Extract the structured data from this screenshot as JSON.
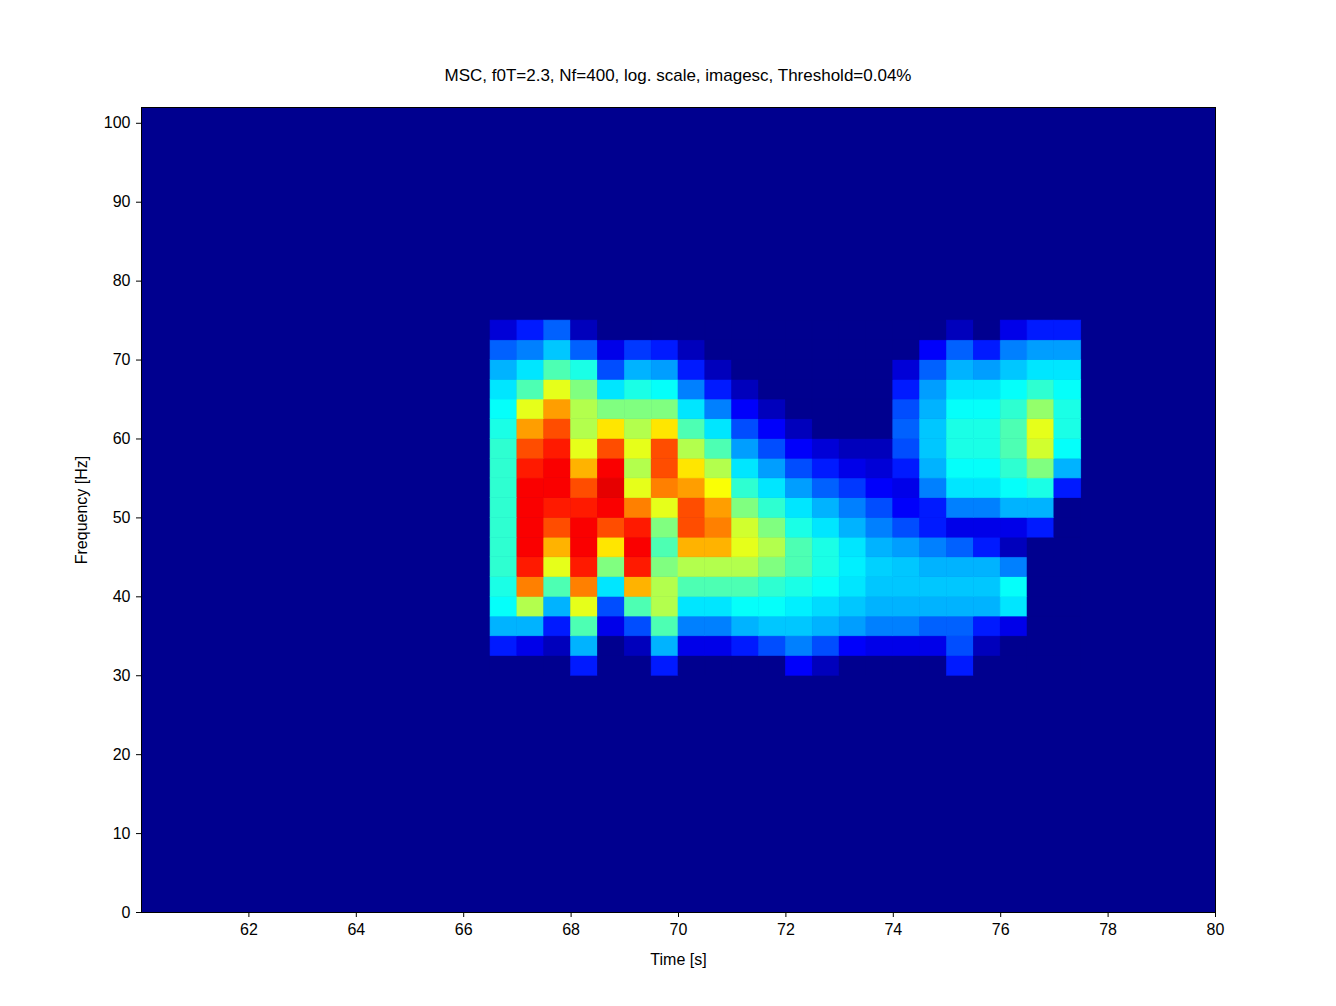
{
  "chart_data": {
    "type": "heatmap",
    "title": "MSC, f0T=2.3, Nf=400, log. scale, imagesc, Threshold=0.04%",
    "xlabel": "Time [s]",
    "ylabel": "Frequency [Hz]",
    "xlim": [
      60,
      80
    ],
    "ylim": [
      0,
      102
    ],
    "xticks": [
      62,
      64,
      66,
      68,
      70,
      72,
      74,
      76,
      78,
      80
    ],
    "yticks": [
      0,
      10,
      20,
      30,
      40,
      50,
      60,
      70,
      80,
      90,
      100
    ],
    "color": "jet",
    "zlim": [
      0,
      100
    ],
    "xbins": [
      66.5,
      67,
      67.5,
      68,
      68.5,
      69,
      69.5,
      70,
      70.5,
      71,
      71.5,
      72,
      72.5,
      73,
      73.5,
      74,
      74.5,
      75,
      75.5,
      76,
      76.5,
      77,
      77.5
    ],
    "ybins": [
      30,
      32.5,
      35,
      37.5,
      40,
      42.5,
      45,
      47.5,
      50,
      52.5,
      55,
      57.5,
      60,
      62.5,
      65,
      67.5,
      70,
      72.5,
      75
    ],
    "values": [
      [
        0,
        0,
        0,
        15,
        0,
        0,
        15,
        0,
        0,
        0,
        0,
        12,
        5,
        0,
        0,
        0,
        0,
        15,
        0,
        0,
        0,
        0
      ],
      [
        15,
        10,
        5,
        30,
        0,
        5,
        30,
        10,
        10,
        15,
        20,
        25,
        20,
        12,
        10,
        10,
        10,
        20,
        5,
        0,
        0,
        0
      ],
      [
        30,
        30,
        15,
        45,
        10,
        20,
        45,
        25,
        25,
        30,
        32,
        32,
        30,
        28,
        25,
        25,
        22,
        22,
        15,
        10,
        0,
        0
      ],
      [
        38,
        55,
        30,
        60,
        20,
        45,
        55,
        35,
        35,
        38,
        38,
        36,
        34,
        32,
        30,
        30,
        30,
        30,
        30,
        35,
        0,
        0
      ],
      [
        40,
        75,
        45,
        75,
        35,
        70,
        55,
        45,
        45,
        45,
        42,
        40,
        38,
        35,
        32,
        32,
        32,
        32,
        32,
        38,
        0,
        0
      ],
      [
        42,
        85,
        60,
        85,
        50,
        85,
        50,
        55,
        55,
        55,
        50,
        45,
        40,
        36,
        33,
        32,
        30,
        30,
        30,
        25,
        0,
        0
      ],
      [
        42,
        88,
        70,
        88,
        65,
        88,
        45,
        70,
        70,
        60,
        55,
        45,
        40,
        35,
        30,
        28,
        25,
        22,
        15,
        5,
        0,
        0
      ],
      [
        42,
        88,
        80,
        88,
        80,
        85,
        50,
        80,
        75,
        58,
        50,
        40,
        35,
        30,
        25,
        20,
        15,
        10,
        10,
        10,
        15,
        0
      ],
      [
        42,
        88,
        85,
        85,
        88,
        75,
        60,
        80,
        72,
        50,
        42,
        35,
        30,
        25,
        20,
        12,
        15,
        25,
        25,
        30,
        30,
        0
      ],
      [
        42,
        88,
        88,
        80,
        90,
        60,
        75,
        72,
        62,
        42,
        35,
        28,
        22,
        18,
        12,
        10,
        25,
        35,
        35,
        38,
        40,
        15
      ],
      [
        42,
        85,
        88,
        70,
        88,
        55,
        80,
        65,
        55,
        35,
        28,
        20,
        15,
        10,
        8,
        15,
        30,
        38,
        38,
        42,
        50,
        30
      ],
      [
        42,
        80,
        85,
        60,
        80,
        60,
        80,
        55,
        45,
        28,
        20,
        12,
        8,
        5,
        5,
        20,
        32,
        40,
        40,
        45,
        58,
        38
      ],
      [
        40,
        72,
        80,
        55,
        65,
        55,
        65,
        45,
        35,
        20,
        12,
        5,
        0,
        0,
        0,
        22,
        32,
        40,
        40,
        45,
        60,
        40
      ],
      [
        38,
        60,
        72,
        55,
        50,
        50,
        50,
        35,
        25,
        12,
        5,
        0,
        0,
        0,
        0,
        20,
        30,
        38,
        38,
        42,
        52,
        40
      ],
      [
        35,
        45,
        60,
        50,
        35,
        40,
        38,
        25,
        15,
        5,
        0,
        0,
        0,
        0,
        0,
        15,
        28,
        35,
        35,
        38,
        42,
        38
      ],
      [
        30,
        35,
        45,
        40,
        20,
        30,
        28,
        15,
        5,
        0,
        0,
        0,
        0,
        0,
        0,
        8,
        22,
        30,
        28,
        32,
        35,
        35
      ],
      [
        22,
        25,
        32,
        22,
        10,
        18,
        15,
        5,
        0,
        0,
        0,
        0,
        0,
        0,
        0,
        0,
        12,
        22,
        15,
        25,
        28,
        28
      ],
      [
        8,
        15,
        22,
        5,
        0,
        0,
        0,
        0,
        0,
        0,
        0,
        0,
        0,
        0,
        0,
        0,
        0,
        5,
        0,
        10,
        15,
        15
      ]
    ]
  }
}
